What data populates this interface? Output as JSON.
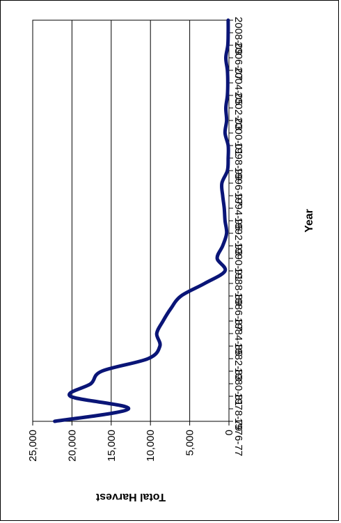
{
  "chart_data": {
    "type": "line",
    "orientation": "rotated-90",
    "xlabel": "Year",
    "ylabel": "Total Harvest",
    "x_tick_labels": [
      "1976-77",
      "1978-79",
      "1980-81",
      "1982-83",
      "1984-85",
      "1986-87",
      "1988-89",
      "1990-91",
      "1992-93",
      "1994-95",
      "1996-97",
      "1998-99",
      "2000-01",
      "2002-03",
      "2004-05",
      "2006-07",
      "2008-09"
    ],
    "y_tick_labels": [
      "0",
      "5,000",
      "10,000",
      "15,000",
      "20,000",
      "25,000"
    ],
    "ylim": [
      0,
      25000
    ],
    "grid": "major y gridlines",
    "legend": "none",
    "series": [
      {
        "color": "#0a1577",
        "x": [
          "1976-77",
          "1977-78",
          "1978-79",
          "1979-80",
          "1980-81",
          "1981-82",
          "1982-83",
          "1983-84",
          "1984-85",
          "1985-86",
          "1986-87",
          "1987-88",
          "1988-89",
          "1989-90",
          "1990-91",
          "1991-92",
          "1992-93",
          "1993-94",
          "1994-95",
          "1995-96",
          "1996-97",
          "1997-98",
          "1998-99",
          "1999-00",
          "2000-01",
          "2001-02",
          "2002-03",
          "2003-04",
          "2004-05",
          "2005-06",
          "2006-07",
          "2007-08",
          "2008-09"
        ],
        "values": [
          22200,
          12800,
          20200,
          17600,
          16200,
          10300,
          8800,
          9200,
          8400,
          7400,
          6100,
          3100,
          500,
          1500,
          800,
          300,
          500,
          600,
          800,
          900,
          200,
          100,
          100,
          500,
          300,
          400,
          200,
          150,
          200,
          400,
          150,
          100,
          100
        ]
      }
    ]
  }
}
